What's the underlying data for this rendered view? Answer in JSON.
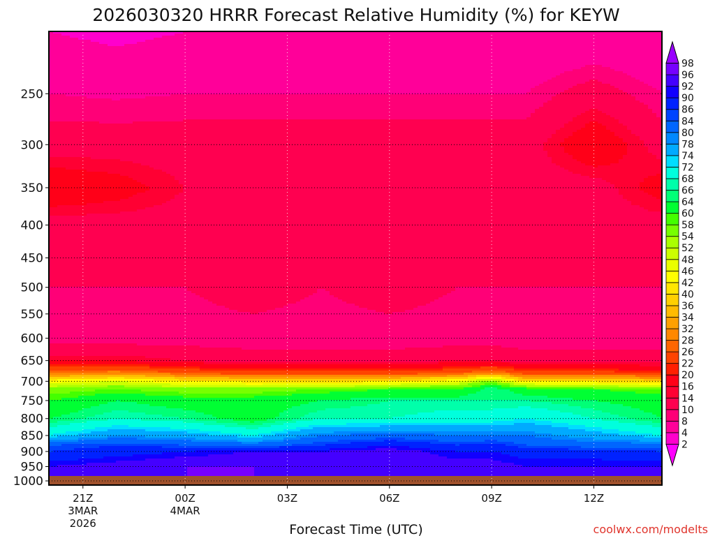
{
  "chart_data": {
    "type": "heatmap",
    "title": "2026030320 HRRR Forecast Relative Humidity (%) for KEYW",
    "xlabel": "Forecast Time (UTC)",
    "ylabel": "",
    "credit": "coolwx.com/modelts",
    "x_ticks": [
      {
        "hour": 21,
        "label": "21Z",
        "date1": "3MAR",
        "date2": "2026"
      },
      {
        "hour": 24,
        "label": "00Z",
        "date1": "4MAR",
        "date2": ""
      },
      {
        "hour": 27,
        "label": "03Z",
        "date1": "",
        "date2": ""
      },
      {
        "hour": 30,
        "label": "06Z",
        "date1": "",
        "date2": ""
      },
      {
        "hour": 33,
        "label": "09Z",
        "date1": "",
        "date2": ""
      },
      {
        "hour": 36,
        "label": "12Z",
        "date1": "",
        "date2": ""
      }
    ],
    "xlim": [
      20,
      38
    ],
    "y_ticks": [
      250,
      300,
      350,
      400,
      450,
      500,
      550,
      600,
      650,
      700,
      750,
      800,
      850,
      900,
      950,
      1000
    ],
    "ylim": [
      1015,
      200
    ],
    "y_scale": "log",
    "grid": true,
    "colorbar": {
      "position": "right",
      "levels": [
        2,
        4,
        8,
        10,
        14,
        16,
        20,
        22,
        26,
        28,
        32,
        34,
        36,
        40,
        42,
        46,
        48,
        52,
        54,
        58,
        60,
        64,
        66,
        68,
        72,
        74,
        78,
        80,
        84,
        86,
        90,
        92,
        96,
        98
      ],
      "colors": [
        "#ff00ff",
        "#ff00cc",
        "#ff0099",
        "#ff0077",
        "#ff0050",
        "#ff0033",
        "#ff0018",
        "#ff2000",
        "#ff4400",
        "#ff6600",
        "#ff8800",
        "#ffa000",
        "#ffbb00",
        "#ffd000",
        "#ffe600",
        "#ffff00",
        "#eaff00",
        "#ccff00",
        "#aaff00",
        "#77ff00",
        "#44ff00",
        "#00ff33",
        "#00ff77",
        "#00ffaa",
        "#00ffdd",
        "#00ddff",
        "#00aaff",
        "#0088ff",
        "#0066ff",
        "#0044ff",
        "#0022ff",
        "#1100ff",
        "#4400ff",
        "#7700ff",
        "#9900ff"
      ]
    },
    "columns_hour": [
      20,
      22,
      24,
      26,
      28,
      30,
      32,
      33,
      34,
      36,
      38
    ],
    "profile_pressure": [
      200,
      300,
      350,
      400,
      500,
      600,
      650,
      680,
      700,
      720,
      750,
      800,
      850,
      880,
      900,
      950,
      1000
    ],
    "rh_columns": [
      [
        4,
        12,
        20,
        12,
        10,
        8,
        16,
        28,
        44,
        56,
        60,
        64,
        72,
        84,
        86,
        92,
        96
      ],
      [
        3,
        12,
        18,
        12,
        10,
        8,
        16,
        30,
        48,
        58,
        64,
        68,
        78,
        86,
        88,
        94,
        96
      ],
      [
        4,
        12,
        14,
        12,
        10,
        8,
        14,
        26,
        42,
        56,
        62,
        66,
        76,
        84,
        90,
        96,
        96
      ],
      [
        4,
        12,
        12,
        14,
        12,
        8,
        12,
        24,
        40,
        56,
        62,
        62,
        72,
        82,
        92,
        96,
        96
      ],
      [
        4,
        12,
        12,
        14,
        10,
        8,
        12,
        24,
        40,
        58,
        64,
        68,
        80,
        86,
        92,
        94,
        96
      ],
      [
        4,
        12,
        12,
        14,
        12,
        8,
        12,
        24,
        40,
        60,
        66,
        68,
        82,
        90,
        94,
        96,
        96
      ],
      [
        4,
        12,
        12,
        12,
        10,
        8,
        14,
        26,
        46,
        60,
        66,
        70,
        80,
        86,
        90,
        94,
        96
      ],
      [
        4,
        12,
        12,
        12,
        10,
        8,
        14,
        30,
        56,
        66,
        66,
        70,
        80,
        88,
        90,
        94,
        96
      ],
      [
        4,
        12,
        12,
        12,
        10,
        8,
        12,
        24,
        40,
        62,
        66,
        72,
        80,
        84,
        88,
        92,
        94
      ],
      [
        4,
        20,
        12,
        12,
        10,
        8,
        12,
        24,
        40,
        60,
        64,
        68,
        76,
        82,
        88,
        92,
        96
      ],
      [
        4,
        12,
        18,
        12,
        10,
        8,
        12,
        22,
        38,
        58,
        62,
        64,
        72,
        82,
        86,
        92,
        96
      ]
    ],
    "surface_color": "#a0522d"
  }
}
